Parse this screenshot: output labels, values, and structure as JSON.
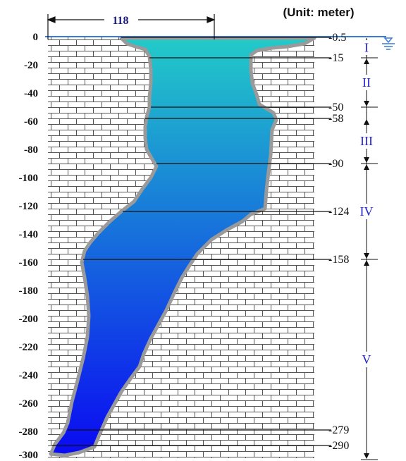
{
  "unit_label": "(Unit: meter)",
  "width_label": "118",
  "y_ticks": [
    "0",
    "-20",
    "-40",
    "-60",
    "-80",
    "-100",
    "-120",
    "-140",
    "-160",
    "-180",
    "-200",
    "-220",
    "-240",
    "-260",
    "-280",
    "-300"
  ],
  "depth_markers": [
    {
      "label": "-0.5",
      "depth": -0.5
    },
    {
      "label": "-15",
      "depth": -15
    },
    {
      "label": "-50",
      "depth": -50
    },
    {
      "label": "-58",
      "depth": -58
    },
    {
      "label": "-90",
      "depth": -90
    },
    {
      "label": "-124",
      "depth": -124
    },
    {
      "label": "-158",
      "depth": -158
    },
    {
      "label": "-279",
      "depth": -279
    },
    {
      "label": "-290",
      "depth": -290
    }
  ],
  "zones": [
    {
      "label": "I",
      "top": -0.5,
      "bottom": -15
    },
    {
      "label": "II",
      "top": -15,
      "bottom": -50
    },
    {
      "label": "III",
      "top": -58,
      "bottom": -90
    },
    {
      "label": "IV",
      "top": -90,
      "bottom": -158
    },
    {
      "label": "V",
      "top": -158,
      "bottom": -300
    }
  ],
  "colors": {
    "water_top": "#22cbc8",
    "water_bottom": "#0a0af2",
    "wall_outline": "#9a9a9a",
    "water_line": "#3a7bd5",
    "zone_text": "#2222cc"
  }
}
